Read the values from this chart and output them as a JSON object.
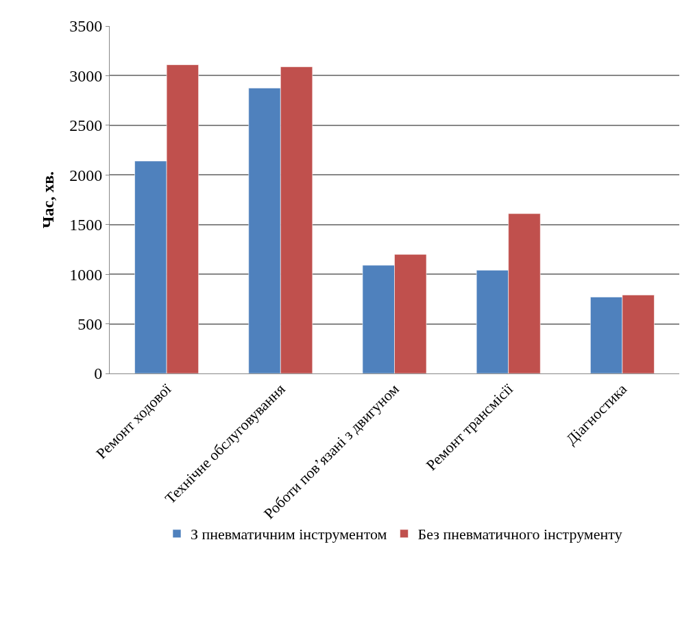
{
  "chart_data": {
    "type": "bar",
    "ylabel": "Час, хв.",
    "categories": [
      "Ремонт ходової",
      "Технічне обслуговування",
      "Роботи пов’язані з двигуном",
      "Ремонт трансмісії",
      "Діагностика"
    ],
    "series": [
      {
        "name": "З пневматичним інструментом",
        "color": "#4f81bd",
        "values": [
          2140,
          2875,
          1090,
          1040,
          770
        ]
      },
      {
        "name": "Без пневматичного інструменту",
        "color": "#c0504d",
        "values": [
          3110,
          3090,
          1200,
          1610,
          790
        ]
      }
    ],
    "ylim": [
      0,
      3500
    ],
    "yticks": [
      0,
      500,
      1000,
      1500,
      2000,
      2500,
      3000,
      3500
    ],
    "grid": "y",
    "legend": "bottom"
  }
}
